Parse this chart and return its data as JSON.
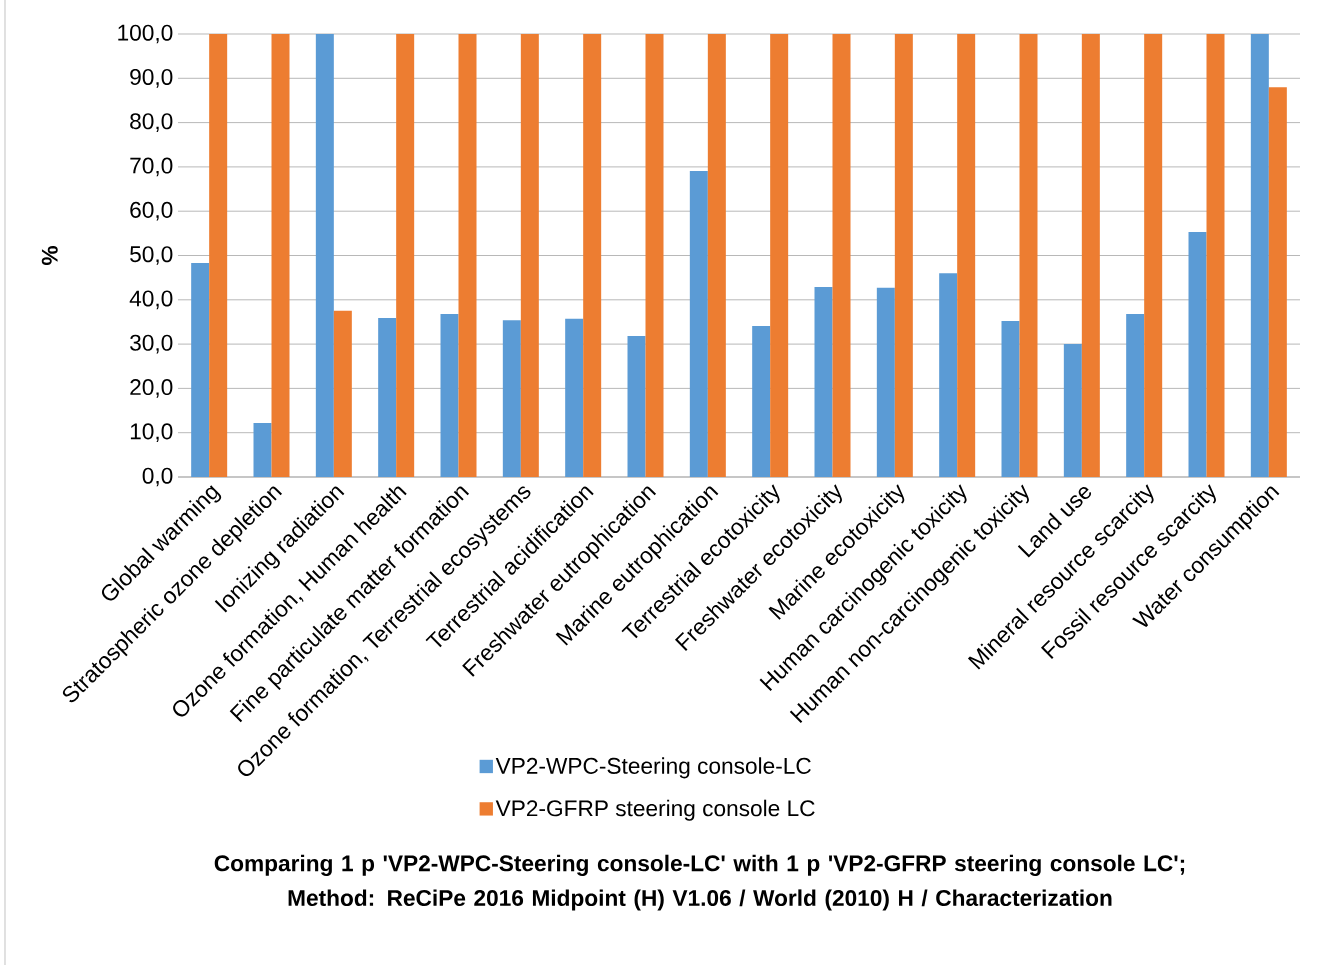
{
  "chart_data": {
    "type": "bar",
    "categories": [
      "Global warming",
      "Stratospheric ozone depletion",
      "Ionizing radiation",
      "Ozone formation, Human health",
      "Fine particulate matter formation",
      "Ozone formation, Terrestrial ecosystems",
      "Terrestrial acidification",
      "Freshwater eutrophication",
      "Marine eutrophication",
      "Terrestrial ecotoxicity",
      "Freshwater ecotoxicity",
      "Marine ecotoxicity",
      "Human carcinogenic toxicity",
      "Human non-carcinogenic toxicity",
      "Land use",
      "Mineral resource scarcity",
      "Fossil resource scarcity",
      "Water consumption"
    ],
    "series": [
      {
        "name": "VP2-WPC-Steering console-LC",
        "color": "#5b9bd5",
        "values": [
          48.3,
          12.2,
          100,
          35.9,
          36.8,
          35.4,
          35.7,
          31.8,
          69.1,
          34.1,
          42.9,
          42.7,
          46.0,
          35.2,
          30.0,
          36.8,
          55.3,
          100
        ]
      },
      {
        "name": "VP2-GFRP steering console LC",
        "color": "#ed7d31",
        "values": [
          100,
          100,
          37.5,
          100,
          100,
          100,
          100,
          100,
          100,
          100,
          100,
          100,
          100,
          100,
          100,
          100,
          100,
          88.0
        ]
      }
    ],
    "ylabel": "%",
    "ylim": [
      0,
      100
    ],
    "yticks": [
      {
        "value": 0,
        "label": "0,0"
      },
      {
        "value": 10,
        "label": "10,0"
      },
      {
        "value": 20,
        "label": "20,0"
      },
      {
        "value": 30,
        "label": "30,0"
      },
      {
        "value": 40,
        "label": "40,0"
      },
      {
        "value": 50,
        "label": "50,0"
      },
      {
        "value": 60,
        "label": "60,0"
      },
      {
        "value": 70,
        "label": "70,0"
      },
      {
        "value": 80,
        "label": "80,0"
      },
      {
        "value": 90,
        "label": "90,0"
      },
      {
        "value": 100,
        "label": "100,0"
      }
    ],
    "grid": "y",
    "legend": "bottom",
    "title": "Comparing 1 p 'VP2-WPC-Steering console-LC' with 1 p 'VP2-GFRP steering console LC';\nMethod: ReCiPe 2016 Midpoint (H) V1.06 / World (2010) H / Characterization"
  }
}
